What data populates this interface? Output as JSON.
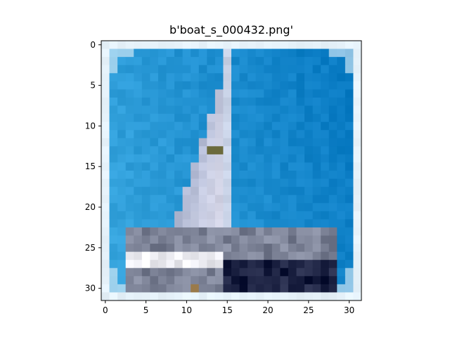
{
  "figure": {
    "title": "b'boat_s_000432.png'"
  },
  "axes": {
    "x_ticks": [
      "0",
      "5",
      "10",
      "15",
      "20",
      "25",
      "30"
    ],
    "y_ticks": [
      "0",
      "5",
      "10",
      "15",
      "20",
      "25",
      "30"
    ]
  },
  "image": {
    "grid_size": 32,
    "colors": {
      "sky_light": "#3aa8e0",
      "sky_mid": "#1c93d6",
      "sky_dark": "#0a7cc4",
      "border": "#e6f2fa",
      "sail": "#dcdcec",
      "sail_shadow": "#a9b3cf",
      "mast": "#c8d2e6",
      "hull_dark": "#1a2040",
      "hull_gray": "#7c8296",
      "deck_white": "#e9e9ef",
      "accent_olive": "#6b6a3c",
      "accent_brown": "#9a7a4a"
    }
  }
}
